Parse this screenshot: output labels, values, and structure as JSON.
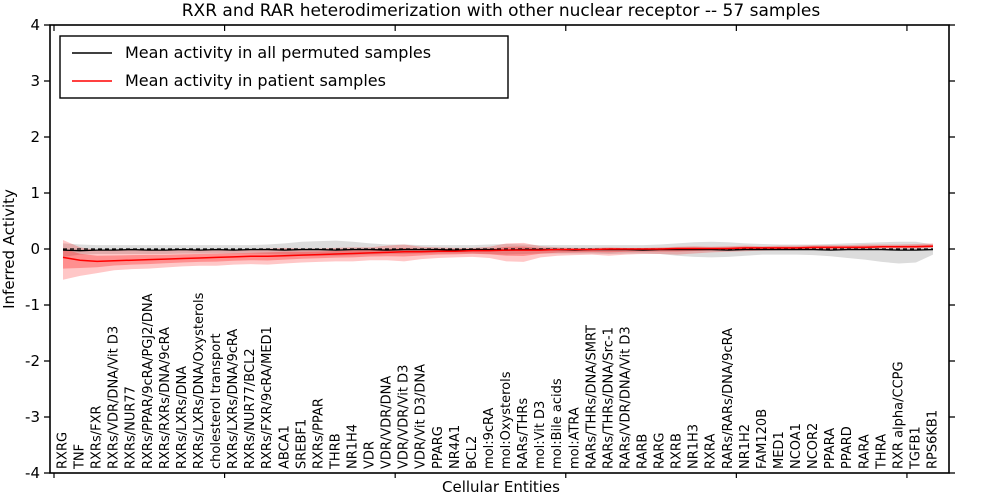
{
  "figure": {
    "background": "#ffffff",
    "frame_color": "#000000"
  },
  "chart_data": {
    "type": "line",
    "title": "RXR and RAR heterodimerization with other nuclear receptor -- 57 samples",
    "xlabel": "Cellular Entities",
    "ylabel": "Inferred Activity",
    "ylim": [
      -4,
      4
    ],
    "yticks": [
      "4",
      "3",
      "2",
      "1",
      "0",
      "-1",
      "-2",
      "-3",
      "-4"
    ],
    "ytick_values": [
      4,
      3,
      2,
      1,
      0,
      -1,
      -2,
      -3,
      -4
    ],
    "grid": false,
    "legend_position": "upper left",
    "legend": [
      {
        "label": "Mean activity in all permuted samples",
        "color": "#000000"
      },
      {
        "label": "Mean activity in patient samples",
        "color": "#ff0000"
      }
    ],
    "zero_line": {
      "value": 0,
      "style": "dashed",
      "color": "#000000"
    },
    "colors": {
      "permuted_line": "#000000",
      "permuted_band": "rgba(130,130,130,0.28)",
      "patient_line": "#ff0000",
      "patient_band": "rgba(255,0,0,0.22)",
      "patient_band_inner": "rgba(255,0,0,0.28)"
    },
    "categories": [
      "RXRG",
      "TNF",
      "RXRs/FXR",
      "RXRs/VDR/DNA/Vit D3",
      "RXRs/NUR77",
      "RXRs/PPAR/9cRA/PGJ2/DNA",
      "RXRs/RXRs/DNA/9cRA",
      "RXRs/LXRs/DNA",
      "RXRs/LXRs/DNA/Oxysterols",
      "cholesterol transport",
      "RXRs/LXRs/DNA/9cRA",
      "RXRs/NUR77/BCL2",
      "RXRs/FXR/9cRA/MED1",
      "ABCA1",
      "SREBF1",
      "RXRs/PPAR",
      "THRB",
      "NR1H4",
      "VDR",
      "VDR/VDR/DNA",
      "VDR/VDR/Vit D3",
      "VDR/Vit D3/DNA",
      "PPARG",
      "NR4A1",
      "BCL2",
      "mol:9cRA",
      "mol:Oxysterols",
      "RARs/THRs",
      "mol:Vit D3",
      "mol:Bile acids",
      "mol:ATRA",
      "RARs/THRs/DNA/SMRT",
      "RARs/THRs/DNA/Src-1",
      "RARs/VDR/DNA/Vit D3",
      "RARB",
      "RARG",
      "RXRB",
      "NR1H3",
      "RXRA",
      "RARs/RARs/DNA/9cRA",
      "NR1H2",
      "FAM120B",
      "MED1",
      "NCOA1",
      "NCOR2",
      "PPARA",
      "PPARD",
      "RARA",
      "THRA",
      "RXR alpha/CCPG",
      "TGFB1",
      "RPS6KB1"
    ],
    "series": [
      {
        "name": "permuted_mean",
        "values": [
          -0.02,
          -0.03,
          -0.02,
          -0.02,
          -0.01,
          -0.02,
          -0.02,
          -0.01,
          -0.02,
          -0.01,
          -0.02,
          -0.01,
          -0.01,
          -0.02,
          -0.01,
          -0.01,
          -0.02,
          -0.01,
          -0.01,
          -0.02,
          -0.01,
          -0.01,
          -0.01,
          -0.02,
          -0.01,
          -0.01,
          -0.02,
          -0.01,
          -0.01,
          -0.01,
          -0.02,
          -0.01,
          -0.01,
          -0.01,
          -0.02,
          -0.01,
          -0.01,
          -0.01,
          -0.01,
          -0.02,
          -0.01,
          -0.01,
          -0.01,
          -0.01,
          -0.01,
          -0.02,
          -0.01,
          -0.01,
          -0.01,
          -0.02,
          -0.02,
          -0.01
        ]
      },
      {
        "name": "permuted_hi",
        "values": [
          0.1,
          0.08,
          0.07,
          0.07,
          0.07,
          0.07,
          0.07,
          0.07,
          0.07,
          0.07,
          0.07,
          0.07,
          0.08,
          0.1,
          0.13,
          0.14,
          0.15,
          0.13,
          0.1,
          0.08,
          0.08,
          0.07,
          0.07,
          0.07,
          0.07,
          0.08,
          0.09,
          0.08,
          0.07,
          0.07,
          0.07,
          0.07,
          0.07,
          0.07,
          0.07,
          0.08,
          0.1,
          0.12,
          0.13,
          0.12,
          0.1,
          0.09,
          0.08,
          0.08,
          0.08,
          0.09,
          0.1,
          0.11,
          0.12,
          0.13,
          0.13,
          0.08
        ]
      },
      {
        "name": "permuted_lo",
        "values": [
          -0.14,
          -0.1,
          -0.09,
          -0.09,
          -0.09,
          -0.09,
          -0.09,
          -0.08,
          -0.08,
          -0.08,
          -0.08,
          -0.08,
          -0.09,
          -0.1,
          -0.12,
          -0.12,
          -0.12,
          -0.11,
          -0.1,
          -0.09,
          -0.09,
          -0.08,
          -0.08,
          -0.08,
          -0.08,
          -0.09,
          -0.1,
          -0.09,
          -0.08,
          -0.08,
          -0.08,
          -0.08,
          -0.09,
          -0.08,
          -0.08,
          -0.09,
          -0.12,
          -0.14,
          -0.15,
          -0.14,
          -0.12,
          -0.1,
          -0.1,
          -0.1,
          -0.11,
          -0.13,
          -0.16,
          -0.19,
          -0.23,
          -0.26,
          -0.24,
          -0.1
        ]
      },
      {
        "name": "patient_mean",
        "values": [
          -0.15,
          -0.2,
          -0.22,
          -0.21,
          -0.2,
          -0.19,
          -0.18,
          -0.17,
          -0.16,
          -0.15,
          -0.14,
          -0.13,
          -0.13,
          -0.12,
          -0.11,
          -0.1,
          -0.09,
          -0.08,
          -0.07,
          -0.06,
          -0.05,
          -0.05,
          -0.04,
          -0.04,
          -0.03,
          -0.03,
          -0.02,
          -0.02,
          -0.02,
          -0.01,
          -0.01,
          -0.01,
          0.0,
          0.0,
          0.0,
          0.0,
          0.01,
          0.01,
          0.01,
          0.01,
          0.02,
          0.02,
          0.02,
          0.02,
          0.03,
          0.03,
          0.03,
          0.03,
          0.04,
          0.04,
          0.04,
          0.05
        ]
      },
      {
        "name": "patient_hi",
        "values": [
          0.16,
          0.03,
          -0.02,
          -0.02,
          -0.02,
          -0.02,
          -0.03,
          -0.02,
          -0.02,
          -0.02,
          -0.01,
          -0.01,
          0.01,
          0.02,
          0.01,
          0.01,
          0.02,
          0.03,
          0.03,
          0.06,
          0.08,
          0.04,
          0.03,
          0.02,
          0.02,
          0.04,
          0.1,
          0.11,
          0.05,
          0.03,
          0.02,
          0.02,
          0.03,
          0.02,
          0.02,
          0.03,
          0.04,
          0.05,
          0.04,
          0.05,
          0.06,
          0.05,
          0.06,
          0.06,
          0.07,
          0.07,
          0.07,
          0.08,
          0.08,
          0.08,
          0.09,
          0.1
        ]
      },
      {
        "name": "patient_lo",
        "values": [
          -0.55,
          -0.48,
          -0.43,
          -0.38,
          -0.36,
          -0.35,
          -0.33,
          -0.31,
          -0.3,
          -0.3,
          -0.28,
          -0.27,
          -0.28,
          -0.26,
          -0.24,
          -0.23,
          -0.22,
          -0.22,
          -0.2,
          -0.2,
          -0.22,
          -0.18,
          -0.16,
          -0.15,
          -0.14,
          -0.16,
          -0.22,
          -0.23,
          -0.15,
          -0.12,
          -0.11,
          -0.1,
          -0.12,
          -0.1,
          -0.09,
          -0.09,
          -0.1,
          -0.08,
          -0.06,
          -0.05,
          -0.04,
          -0.03,
          -0.02,
          -0.02,
          -0.01,
          -0.01,
          0.0,
          0.0,
          0.01,
          0.01,
          0.01,
          0.02
        ]
      }
    ]
  }
}
